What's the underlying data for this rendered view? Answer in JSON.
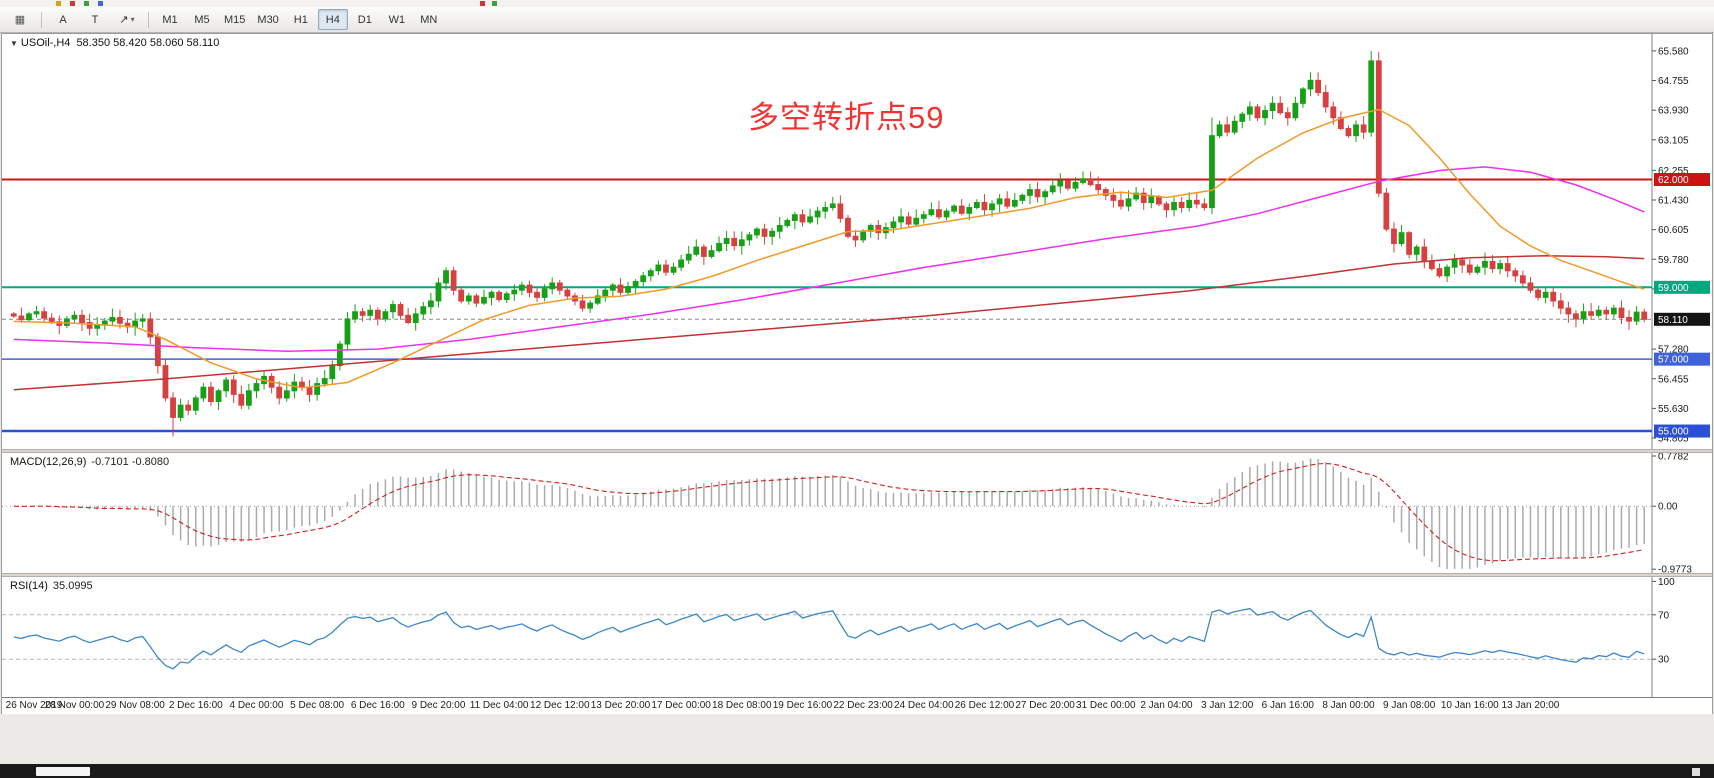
{
  "toolbar": {
    "window_icon": "▦",
    "tools": [
      {
        "name": "label-tool",
        "glyph": "A"
      },
      {
        "name": "text-tool",
        "glyph": "T"
      },
      {
        "name": "draw-tools",
        "glyph": "↗",
        "dropdown": "▾"
      }
    ],
    "timeframes": [
      "M1",
      "M5",
      "M15",
      "M30",
      "H1",
      "H4",
      "D1",
      "W1",
      "MN"
    ],
    "active_timeframe": "H4"
  },
  "quote": {
    "expander": "▼",
    "symbol_period": "USOil-,H4",
    "ohlc": "58.350 58.420 58.060 58.110"
  },
  "annotation": {
    "text": "多空转折点59",
    "color": "#f03434"
  },
  "macd_header": {
    "label": "MACD(12,26,9)",
    "values": "-0.7101 -0.8080"
  },
  "rsi_header": {
    "label": "RSI(14)",
    "value": "35.0995"
  },
  "menu_sliver_colors": [
    "#d6a21b",
    "#c43b3b",
    "#3aa23a",
    "#4668c8",
    "#c43b3b",
    "#3aa23a"
  ],
  "menu_sliver_x": [
    56,
    70,
    84,
    98,
    480,
    492
  ],
  "chart_data": [
    {
      "type": "candlestick",
      "symbol": "USOil-",
      "period": "H4",
      "ohlc_display": "58.350 58.420 58.060 58.110",
      "y_range": [
        54.5,
        66.05
      ],
      "up_color": "#17a017",
      "down_color": "#d64040",
      "first_open": 58.26,
      "closes": [
        58.2,
        58.1,
        58.26,
        58.32,
        58.14,
        58.04,
        57.94,
        58.12,
        58.22,
        58.02,
        57.86,
        57.96,
        58.06,
        58.16,
        58.0,
        57.9,
        58.06,
        58.12,
        57.62,
        56.82,
        55.92,
        55.38,
        55.72,
        55.58,
        55.92,
        56.22,
        55.82,
        56.12,
        56.42,
        56.02,
        55.72,
        56.12,
        56.32,
        56.52,
        56.22,
        55.92,
        56.12,
        56.36,
        56.22,
        56.02,
        56.32,
        56.46,
        56.82,
        57.42,
        58.12,
        58.32,
        58.22,
        58.36,
        58.12,
        58.32,
        58.52,
        58.22,
        58.02,
        58.26,
        58.46,
        58.62,
        59.12,
        59.46,
        58.92,
        58.62,
        58.76,
        58.56,
        58.72,
        58.86,
        58.66,
        58.82,
        58.92,
        59.06,
        58.86,
        58.72,
        58.96,
        59.12,
        58.92,
        58.76,
        58.62,
        58.42,
        58.56,
        58.76,
        58.92,
        59.06,
        58.86,
        59.02,
        59.16,
        59.32,
        59.46,
        59.62,
        59.42,
        59.56,
        59.76,
        59.92,
        60.12,
        59.86,
        60.02,
        60.22,
        60.36,
        60.16,
        60.32,
        60.46,
        60.62,
        60.42,
        60.56,
        60.72,
        60.86,
        61.02,
        60.82,
        60.96,
        61.12,
        61.22,
        61.32,
        60.92,
        60.42,
        60.32,
        60.56,
        60.72,
        60.52,
        60.66,
        60.82,
        60.96,
        60.76,
        60.92,
        61.02,
        61.16,
        60.96,
        61.12,
        61.26,
        61.06,
        61.22,
        61.36,
        61.16,
        61.32,
        61.46,
        61.26,
        61.42,
        61.56,
        61.72,
        61.52,
        61.66,
        61.82,
        61.96,
        61.76,
        61.92,
        62.02,
        61.86,
        61.72,
        61.56,
        61.42,
        61.26,
        61.46,
        61.62,
        61.36,
        61.52,
        61.32,
        61.16,
        61.36,
        61.22,
        61.42,
        61.32,
        61.22,
        63.22,
        63.52,
        63.32,
        63.62,
        63.82,
        64.02,
        63.72,
        63.92,
        64.12,
        63.86,
        63.72,
        64.12,
        64.52,
        64.76,
        64.42,
        64.02,
        63.72,
        63.42,
        63.22,
        63.52,
        63.32,
        65.3,
        61.62,
        60.62,
        60.22,
        60.52,
        59.92,
        60.12,
        59.72,
        59.52,
        59.32,
        59.56,
        59.76,
        59.62,
        59.42,
        59.56,
        59.72,
        59.52,
        59.66,
        59.46,
        59.32,
        59.12,
        58.92,
        58.72,
        58.86,
        58.62,
        58.42,
        58.26,
        58.12,
        58.32,
        58.22,
        58.36,
        58.26,
        58.42,
        58.16,
        58.06,
        58.31,
        58.11
      ],
      "wick_overrides": {
        "21": {
          "low": 54.85
        },
        "158": {
          "high": 63.72
        },
        "171": {
          "high": 64.98
        },
        "179": {
          "high": 65.58
        }
      },
      "moving_averages": [
        {
          "name": "slow-red",
          "color": "#c43131",
          "points": [
            [
              0,
              56.15
            ],
            [
              20,
              56.45
            ],
            [
              40,
              56.8
            ],
            [
              60,
              57.15
            ],
            [
              80,
              57.5
            ],
            [
              100,
              57.85
            ],
            [
              120,
              58.2
            ],
            [
              140,
              58.6
            ],
            [
              155,
              58.9
            ],
            [
              170,
              59.3
            ],
            [
              182,
              59.65
            ],
            [
              192,
              59.82
            ],
            [
              202,
              59.88
            ],
            [
              210,
              59.85
            ],
            [
              215,
              59.8
            ]
          ]
        },
        {
          "name": "mid-magenta",
          "color": "#ee30ee",
          "points": [
            [
              0,
              57.55
            ],
            [
              12,
              57.45
            ],
            [
              24,
              57.32
            ],
            [
              36,
              57.22
            ],
            [
              48,
              57.28
            ],
            [
              60,
              57.55
            ],
            [
              72,
              57.9
            ],
            [
              84,
              58.25
            ],
            [
              96,
              58.65
            ],
            [
              108,
              59.1
            ],
            [
              120,
              59.55
            ],
            [
              132,
              59.95
            ],
            [
              144,
              60.35
            ],
            [
              156,
              60.7
            ],
            [
              164,
              61.05
            ],
            [
              172,
              61.5
            ],
            [
              180,
              61.95
            ],
            [
              188,
              62.25
            ],
            [
              194,
              62.35
            ],
            [
              200,
              62.2
            ],
            [
              206,
              61.85
            ],
            [
              211,
              61.45
            ],
            [
              215,
              61.1
            ]
          ]
        },
        {
          "name": "fast-orange",
          "color": "#f09a28",
          "points": [
            [
              0,
              58.05
            ],
            [
              8,
              58.0
            ],
            [
              16,
              57.9
            ],
            [
              20,
              57.55
            ],
            [
              26,
              56.9
            ],
            [
              32,
              56.45
            ],
            [
              38,
              56.2
            ],
            [
              44,
              56.35
            ],
            [
              50,
              56.9
            ],
            [
              56,
              57.5
            ],
            [
              62,
              58.1
            ],
            [
              68,
              58.5
            ],
            [
              74,
              58.7
            ],
            [
              80,
              58.75
            ],
            [
              86,
              58.95
            ],
            [
              92,
              59.3
            ],
            [
              98,
              59.75
            ],
            [
              104,
              60.15
            ],
            [
              110,
              60.55
            ],
            [
              116,
              60.6
            ],
            [
              122,
              60.8
            ],
            [
              128,
              61.0
            ],
            [
              134,
              61.2
            ],
            [
              140,
              61.5
            ],
            [
              146,
              61.65
            ],
            [
              152,
              61.5
            ],
            [
              158,
              61.7
            ],
            [
              164,
              62.6
            ],
            [
              170,
              63.3
            ],
            [
              175,
              63.7
            ],
            [
              180,
              63.95
            ],
            [
              184,
              63.5
            ],
            [
              188,
              62.6
            ],
            [
              192,
              61.6
            ],
            [
              196,
              60.7
            ],
            [
              200,
              60.15
            ],
            [
              204,
              59.75
            ],
            [
              208,
              59.45
            ],
            [
              212,
              59.15
            ],
            [
              215,
              58.95
            ]
          ]
        }
      ],
      "levels": [
        {
          "price": 62.0,
          "label": "62.000",
          "color": "#cc1414",
          "width": 2
        },
        {
          "price": 59.0,
          "label": "59.000",
          "color": "#00a87e",
          "width": 2
        },
        {
          "price": 57.0,
          "label": "57.000",
          "color": "#4062d8",
          "width": 1.5
        },
        {
          "price": 55.0,
          "label": "55.000",
          "color": "#2b50d6",
          "width": 2.5
        }
      ],
      "current_price": {
        "value": 58.11,
        "label": "58.110",
        "badge_color": "#141414"
      },
      "price_ticks": [
        65.58,
        64.755,
        63.93,
        63.105,
        62.255,
        61.43,
        60.605,
        59.78,
        58.955,
        57.28,
        56.455,
        55.63,
        54.805
      ],
      "x_tick_labels": [
        "26 Nov 2019",
        "28 Nov 00:00",
        "29 Nov 08:00",
        "2 Dec 16:00",
        "4 Dec 00:00",
        "5 Dec 08:00",
        "6 Dec 16:00",
        "9 Dec 20:00",
        "11 Dec 04:00",
        "12 Dec 12:00",
        "13 Dec 20:00",
        "17 Dec 00:00",
        "18 Dec 08:00",
        "19 Dec 16:00",
        "22 Dec 23:00",
        "24 Dec 04:00",
        "26 Dec 12:00",
        "27 Dec 20:00",
        "31 Dec 00:00",
        "2 Jan 04:00",
        "3 Jan 12:00",
        "6 Jan 16:00",
        "8 Jan 00:00",
        "9 Jan 08:00",
        "10 Jan 16:00",
        "13 Jan 20:00"
      ]
    },
    {
      "type": "macd",
      "params": [
        12,
        26,
        9
      ],
      "current_values": [
        -0.7101,
        -0.808
      ],
      "scale_ticks": [
        0.7782,
        0,
        -0.9773
      ],
      "scale_tick_labels": [
        "0.7782",
        "0.00",
        "-0.9773"
      ],
      "histogram_color": "#ababab",
      "signal_color": "#cc2222",
      "derived_from": "chart_data[0].closes"
    },
    {
      "type": "line",
      "indicator": "RSI",
      "period": 14,
      "current_value": 35.0995,
      "range": [
        0,
        100
      ],
      "guide_levels": [
        70,
        30
      ],
      "scale_ticks": [
        100,
        70,
        30
      ],
      "line_color": "#3f86c8",
      "derived_from": "chart_data[0].closes"
    }
  ]
}
